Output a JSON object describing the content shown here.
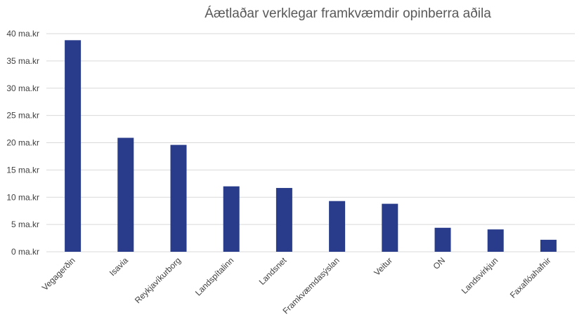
{
  "chart_data": {
    "type": "bar",
    "title": "Áætlaðar verklegar framkvæmdir opinberra aðila",
    "categories": [
      "Vegagerðin",
      "Isavia",
      "Reykjavíkurborg",
      "Landspítalinn",
      "Landsnet",
      "Framkvæmdasýslan",
      "Veitur",
      "ON",
      "Landsvirkjun",
      "Faxaflóahafnir"
    ],
    "values": [
      38.8,
      20.9,
      19.6,
      12.0,
      11.7,
      9.3,
      8.8,
      4.4,
      4.1,
      2.2
    ],
    "ylim": [
      0,
      40
    ],
    "yticks": [
      0,
      5,
      10,
      15,
      20,
      25,
      30,
      35,
      40
    ],
    "ytick_labels": [
      "0 ma.kr",
      "5 ma.kr",
      "10 ma.kr",
      "15 ma.kr",
      "20 ma.kr",
      "25 ma.kr",
      "30 ma.kr",
      "35 ma.kr",
      "40 ma.kr"
    ],
    "xlabel": "",
    "ylabel": "",
    "grid": true,
    "bar_color": "#283c8b",
    "grid_color": "#d9d9d9"
  }
}
